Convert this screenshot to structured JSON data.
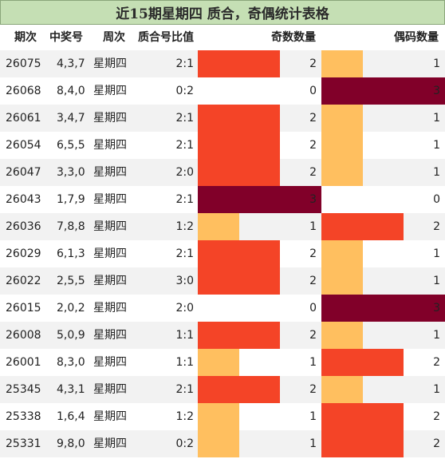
{
  "title": "近15期星期四 质合，奇偶统计表格",
  "headers": {
    "period": "期次",
    "numbers": "中奖号",
    "weekday": "周次",
    "ratio": "质合号比值",
    "odd": "奇数数量",
    "even": "偶码数量"
  },
  "colors": {
    "level1": "#ffbf5f",
    "level2": "#f44427",
    "level3": "#810029",
    "title_bg": "#c5dfb4"
  },
  "bar_max": 3,
  "rows": [
    {
      "period": "26075",
      "numbers": "4,3,7",
      "weekday": "星期四",
      "ratio": "2:1",
      "odd": 2,
      "even": 1
    },
    {
      "period": "26068",
      "numbers": "8,4,0",
      "weekday": "星期四",
      "ratio": "0:2",
      "odd": 0,
      "even": 3
    },
    {
      "period": "26061",
      "numbers": "3,4,7",
      "weekday": "星期四",
      "ratio": "2:1",
      "odd": 2,
      "even": 1
    },
    {
      "period": "26054",
      "numbers": "6,5,5",
      "weekday": "星期四",
      "ratio": "2:1",
      "odd": 2,
      "even": 1
    },
    {
      "period": "26047",
      "numbers": "3,3,0",
      "weekday": "星期四",
      "ratio": "2:0",
      "odd": 2,
      "even": 1
    },
    {
      "period": "26043",
      "numbers": "1,7,9",
      "weekday": "星期四",
      "ratio": "2:1",
      "odd": 3,
      "even": 0
    },
    {
      "period": "26036",
      "numbers": "7,8,8",
      "weekday": "星期四",
      "ratio": "1:2",
      "odd": 1,
      "even": 2
    },
    {
      "period": "26029",
      "numbers": "6,1,3",
      "weekday": "星期四",
      "ratio": "2:1",
      "odd": 2,
      "even": 1
    },
    {
      "period": "26022",
      "numbers": "2,5,5",
      "weekday": "星期四",
      "ratio": "3:0",
      "odd": 2,
      "even": 1
    },
    {
      "period": "26015",
      "numbers": "2,0,2",
      "weekday": "星期四",
      "ratio": "2:0",
      "odd": 0,
      "even": 3
    },
    {
      "period": "26008",
      "numbers": "5,0,9",
      "weekday": "星期四",
      "ratio": "1:1",
      "odd": 2,
      "even": 1
    },
    {
      "period": "26001",
      "numbers": "8,3,0",
      "weekday": "星期四",
      "ratio": "1:1",
      "odd": 1,
      "even": 2
    },
    {
      "period": "25345",
      "numbers": "4,3,1",
      "weekday": "星期四",
      "ratio": "2:1",
      "odd": 2,
      "even": 1
    },
    {
      "period": "25338",
      "numbers": "1,6,4",
      "weekday": "星期四",
      "ratio": "1:2",
      "odd": 1,
      "even": 2
    },
    {
      "period": "25331",
      "numbers": "9,8,0",
      "weekday": "星期四",
      "ratio": "0:2",
      "odd": 1,
      "even": 2
    }
  ]
}
